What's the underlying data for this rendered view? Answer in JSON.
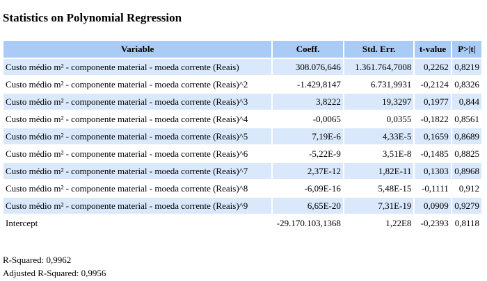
{
  "title": "Statistics on Polynomial Regression",
  "columns": [
    "Variable",
    "Coeff.",
    "Std. Err.",
    "t-value",
    "P>|t|"
  ],
  "rows": [
    {
      "variable": "Custo médio m² - componente material - moeda corrente (Reais)",
      "coeff": "308.076,646",
      "stderr": "1.361.764,7008",
      "t": "0,2262",
      "p": "0,8219"
    },
    {
      "variable": "Custo médio m² - componente material - moeda corrente (Reais)^2",
      "coeff": "-1.429,8147",
      "stderr": "6.731,9931",
      "t": "-0,2124",
      "p": "0,8326"
    },
    {
      "variable": "Custo médio m² - componente material - moeda corrente (Reais)^3",
      "coeff": "3,8222",
      "stderr": "19,3297",
      "t": "0,1977",
      "p": "0,844"
    },
    {
      "variable": "Custo médio m² - componente material - moeda corrente (Reais)^4",
      "coeff": "-0,0065",
      "stderr": "0,0355",
      "t": "-0,1822",
      "p": "0,8561"
    },
    {
      "variable": "Custo médio m² - componente material - moeda corrente (Reais)^5",
      "coeff": "7,19E-6",
      "stderr": "4,33E-5",
      "t": "0,1659",
      "p": "0,8689"
    },
    {
      "variable": "Custo médio m² - componente material - moeda corrente (Reais)^6",
      "coeff": "-5,22E-9",
      "stderr": "3,51E-8",
      "t": "-0,1485",
      "p": "0,8825"
    },
    {
      "variable": "Custo médio m² - componente material - moeda corrente (Reais)^7",
      "coeff": "2,37E-12",
      "stderr": "1,82E-11",
      "t": "0,1303",
      "p": "0,8968"
    },
    {
      "variable": "Custo médio m² - componente material - moeda corrente (Reais)^8",
      "coeff": "-6,09E-16",
      "stderr": "5,48E-15",
      "t": "-0,1111",
      "p": "0,912"
    },
    {
      "variable": "Custo médio m² - componente material - moeda corrente (Reais)^9",
      "coeff": "6,65E-20",
      "stderr": "7,31E-19",
      "t": "0,0909",
      "p": "0,9279"
    },
    {
      "variable": "Intercept",
      "coeff": "-29.170.103,1368",
      "stderr": "1,22E8",
      "t": "-0,2393",
      "p": "0,8118"
    }
  ],
  "r_squared": "R-Squared: 0,9962",
  "adjusted_r_squared": "Adjusted R-Squared: 0,9956",
  "colors": {
    "header_bg": "#aacbf5",
    "odd_row_bg": "#d9e8fb",
    "even_row_bg": "#ffffff"
  }
}
